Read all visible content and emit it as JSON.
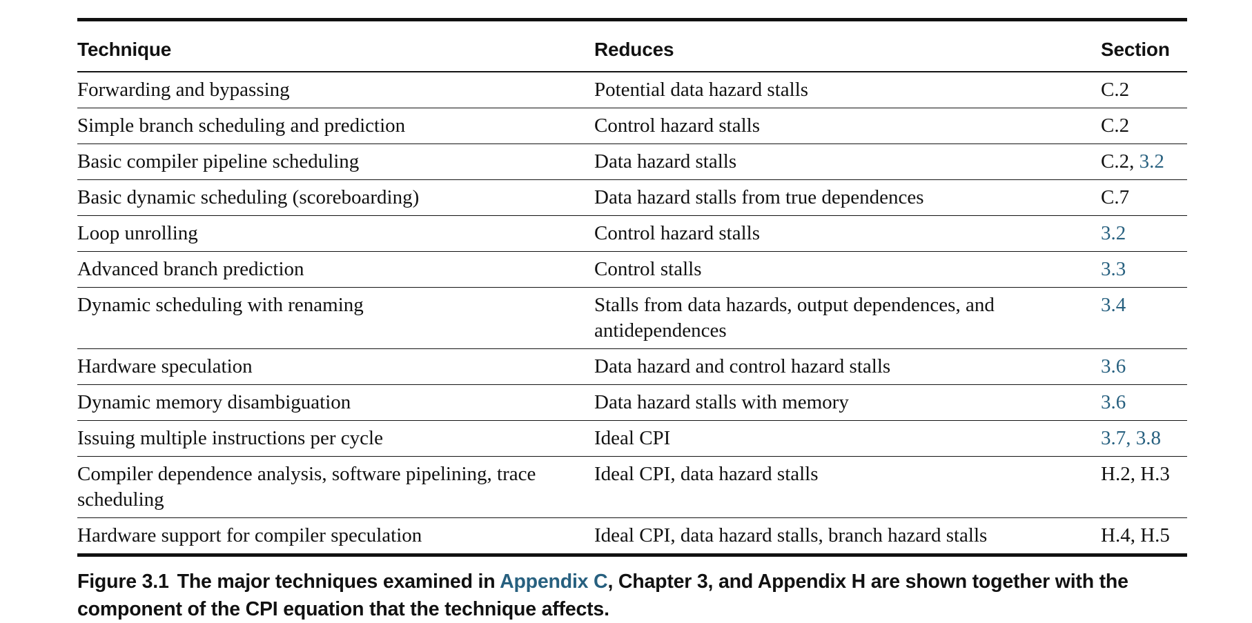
{
  "table": {
    "headers": {
      "technique": "Technique",
      "reduces": "Reduces",
      "section": "Section"
    },
    "rows": [
      {
        "technique": "Forwarding and bypassing",
        "reduces": "Potential data hazard stalls",
        "section": [
          {
            "text": "C.2",
            "link": false
          }
        ]
      },
      {
        "technique": "Simple branch scheduling and prediction",
        "reduces": "Control hazard stalls",
        "section": [
          {
            "text": "C.2",
            "link": false
          }
        ]
      },
      {
        "technique": "Basic compiler pipeline scheduling",
        "reduces": "Data hazard stalls",
        "section": [
          {
            "text": "C.2, ",
            "link": false
          },
          {
            "text": "3.2",
            "link": true
          }
        ]
      },
      {
        "technique": "Basic dynamic scheduling (scoreboarding)",
        "reduces": "Data hazard stalls from true dependences",
        "section": [
          {
            "text": "C.7",
            "link": false
          }
        ]
      },
      {
        "technique": "Loop unrolling",
        "reduces": "Control hazard stalls",
        "section": [
          {
            "text": "3.2",
            "link": true
          }
        ]
      },
      {
        "technique": "Advanced branch prediction",
        "reduces": "Control stalls",
        "section": [
          {
            "text": "3.3",
            "link": true
          }
        ]
      },
      {
        "technique": "Dynamic scheduling with renaming",
        "reduces": "Stalls from data hazards, output dependences, and antidependences",
        "section": [
          {
            "text": "3.4",
            "link": true
          }
        ]
      },
      {
        "technique": "Hardware speculation",
        "reduces": "Data hazard and control hazard stalls",
        "section": [
          {
            "text": "3.6",
            "link": true
          }
        ]
      },
      {
        "technique": "Dynamic memory disambiguation",
        "reduces": "Data hazard stalls with memory",
        "section": [
          {
            "text": "3.6",
            "link": true
          }
        ]
      },
      {
        "technique": "Issuing multiple instructions per cycle",
        "reduces": "Ideal CPI",
        "section": [
          {
            "text": "3.7, 3.8",
            "link": true
          }
        ]
      },
      {
        "technique": "Compiler dependence analysis, software pipelining, trace scheduling",
        "reduces": "Ideal CPI, data hazard stalls",
        "section": [
          {
            "text": "H.2, H.3",
            "link": false
          }
        ]
      },
      {
        "technique": "Hardware support for compiler speculation",
        "reduces": "Ideal CPI, data hazard stalls, branch hazard stalls",
        "section": [
          {
            "text": "H.4, H.5",
            "link": false
          }
        ]
      }
    ]
  },
  "caption": {
    "label": "Figure 3.1",
    "text_before_link": "The major techniques examined in ",
    "link_text": "Appendix C",
    "text_after_link": ", Chapter 3, and Appendix H are shown together with the component of the CPI equation that the technique affects."
  },
  "colors": {
    "link": "#27607f",
    "text": "#111111"
  }
}
